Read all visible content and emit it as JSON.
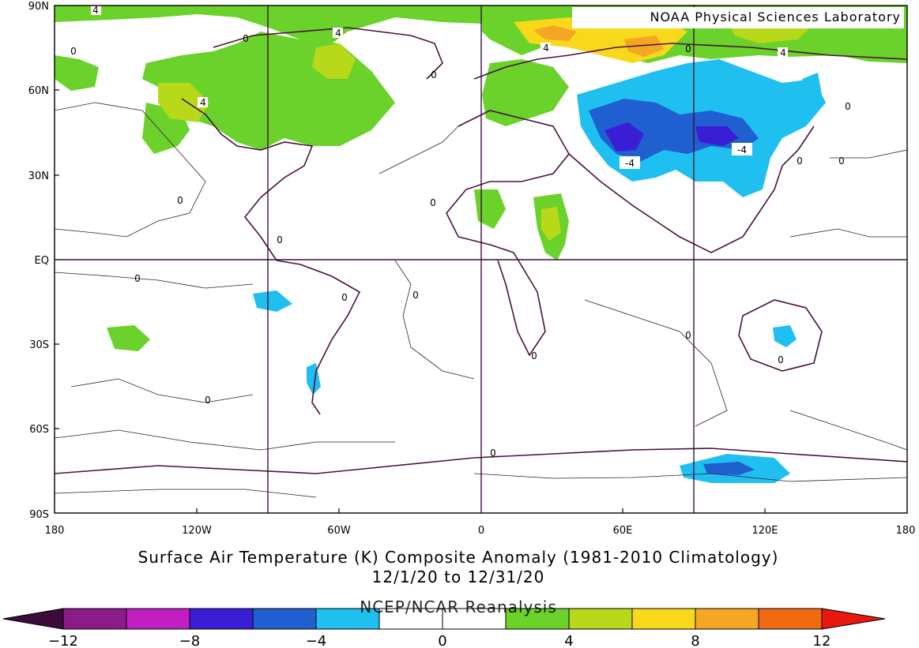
{
  "credit": "NOAA Physical Sciences Laboratory",
  "title": "Surface Air Temperature (K) Composite Anomaly (1981-2010 Climatology)",
  "date_range": "12/1/20  to 12/31/20",
  "source": "NCEP/NCAR Reanalysis",
  "lat_labels": [
    "90N",
    "60N",
    "30N",
    "EQ",
    "30S",
    "60S",
    "90S"
  ],
  "lon_labels": [
    "180",
    "120W",
    "60W",
    "0",
    "60E",
    "120E",
    "180"
  ],
  "contour_labels": [
    "4",
    "4",
    "4",
    "4",
    "4",
    "0",
    "0",
    "0",
    "0",
    "0",
    "0",
    "0",
    "0",
    "0",
    "0",
    "0",
    "0",
    "0",
    "0",
    "0",
    "0",
    "0",
    "0",
    "-4",
    "-4"
  ],
  "colorbar": {
    "tick_labels": [
      "-12",
      "-8",
      "-4",
      "0",
      "4",
      "8",
      "12"
    ],
    "levels": [
      -12,
      -10,
      -8,
      -6,
      -4,
      -2,
      0,
      2,
      4,
      6,
      8,
      10,
      12
    ],
    "colors": [
      "#3b0b3b",
      "#8b1a8b",
      "#c21ec2",
      "#3a1ed6",
      "#1f5fd0",
      "#1fbff0",
      "#ffffff",
      "#ffffff",
      "#6ad22a",
      "#b8d81a",
      "#f7d81a",
      "#f5a623",
      "#f06a10",
      "#e8180e"
    ]
  }
}
